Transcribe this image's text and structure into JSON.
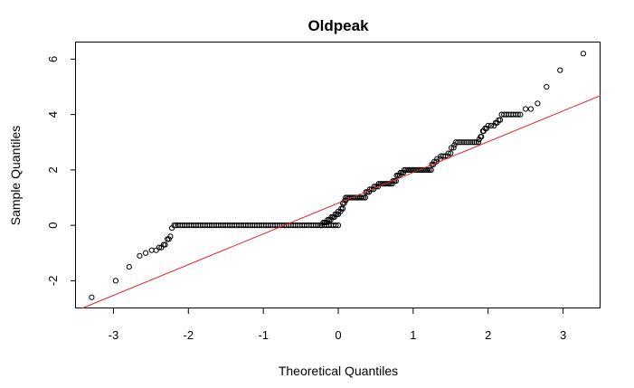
{
  "chart_data": {
    "type": "scatter",
    "title": "Oldpeak",
    "xlabel": "Theoretical Quantiles",
    "ylabel": "Sample Quantiles",
    "xlim": [
      -3.5,
      3.5
    ],
    "ylim": [
      -3.0,
      6.6
    ],
    "xticks": [
      -3,
      -2,
      -1,
      0,
      1,
      2,
      3
    ],
    "yticks": [
      -2,
      0,
      2,
      4,
      6
    ],
    "grid": false,
    "legend": "none",
    "colors": {
      "points": "#000000",
      "ref_line": "#e8242c",
      "frame": "#000000"
    },
    "series": [
      {
        "segments": [
          {
            "x_from": -3.29,
            "x_to": -3.29,
            "value": -2.6,
            "count": 1
          },
          {
            "x_from": -2.97,
            "x_to": -2.97,
            "value": -2.0,
            "count": 1
          },
          {
            "x_from": -2.79,
            "x_to": -2.79,
            "value": -1.5,
            "count": 1
          },
          {
            "x_from": -2.65,
            "x_to": -2.65,
            "value": -1.1,
            "count": 1
          },
          {
            "x_from": -2.57,
            "x_to": -2.57,
            "value": -1.0,
            "count": 1
          },
          {
            "x_from": -2.49,
            "x_to": -2.43,
            "value": -0.9,
            "count": 2
          },
          {
            "x_from": -2.39,
            "x_to": -2.36,
            "value": -0.8,
            "count": 2
          },
          {
            "x_from": -2.33,
            "x_to": -2.31,
            "value": -0.7,
            "count": 2
          },
          {
            "x_from": -2.28,
            "x_to": -2.26,
            "value": -0.5,
            "count": 2
          },
          {
            "x_from": -2.24,
            "x_to": -2.24,
            "value": -0.4,
            "count": 1
          },
          {
            "x_from": -2.22,
            "x_to": -2.22,
            "value": -0.1,
            "count": 1
          },
          {
            "x_from": -2.19,
            "x_to": -2.19,
            "value": 0.0,
            "count": 1
          },
          {
            "x_from": -2.17,
            "x_to": -0.24,
            "value": 0.0,
            "count": 65
          },
          {
            "x_from": -0.22,
            "x_to": 0.0,
            "value": 0.0,
            "count": 8
          },
          {
            "x_from": -0.2,
            "x_to": -0.16,
            "value": 0.1,
            "count": 3
          },
          {
            "x_from": -0.14,
            "x_to": -0.1,
            "value": 0.2,
            "count": 3
          },
          {
            "x_from": -0.09,
            "x_to": -0.05,
            "value": 0.3,
            "count": 3
          },
          {
            "x_from": -0.04,
            "x_to": 0.0,
            "value": 0.4,
            "count": 3
          },
          {
            "x_from": 0.0,
            "x_to": 0.03,
            "value": 0.5,
            "count": 2
          },
          {
            "x_from": 0.04,
            "x_to": 0.06,
            "value": 0.6,
            "count": 2
          },
          {
            "x_from": 0.06,
            "x_to": 0.08,
            "value": 0.8,
            "count": 2
          },
          {
            "x_from": 0.09,
            "x_to": 0.1,
            "value": 0.9,
            "count": 2
          },
          {
            "x_from": 0.1,
            "x_to": 0.36,
            "value": 1.0,
            "count": 13
          },
          {
            "x_from": 0.37,
            "x_to": 0.41,
            "value": 1.2,
            "count": 3
          },
          {
            "x_from": 0.42,
            "x_to": 0.47,
            "value": 1.3,
            "count": 3
          },
          {
            "x_from": 0.48,
            "x_to": 0.53,
            "value": 1.4,
            "count": 3
          },
          {
            "x_from": 0.54,
            "x_to": 0.72,
            "value": 1.5,
            "count": 9
          },
          {
            "x_from": 0.73,
            "x_to": 0.77,
            "value": 1.6,
            "count": 3
          },
          {
            "x_from": 0.78,
            "x_to": 0.82,
            "value": 1.8,
            "count": 3
          },
          {
            "x_from": 0.83,
            "x_to": 0.87,
            "value": 1.9,
            "count": 3
          },
          {
            "x_from": 0.88,
            "x_to": 1.24,
            "value": 2.0,
            "count": 17
          },
          {
            "x_from": 1.25,
            "x_to": 1.27,
            "value": 2.2,
            "count": 2
          },
          {
            "x_from": 1.28,
            "x_to": 1.31,
            "value": 2.3,
            "count": 2
          },
          {
            "x_from": 1.32,
            "x_to": 1.36,
            "value": 2.4,
            "count": 2
          },
          {
            "x_from": 1.37,
            "x_to": 1.46,
            "value": 2.5,
            "count": 4
          },
          {
            "x_from": 1.47,
            "x_to": 1.5,
            "value": 2.6,
            "count": 2
          },
          {
            "x_from": 1.51,
            "x_to": 1.54,
            "value": 2.8,
            "count": 2
          },
          {
            "x_from": 1.55,
            "x_to": 1.56,
            "value": 2.9,
            "count": 1
          },
          {
            "x_from": 1.57,
            "x_to": 1.87,
            "value": 3.0,
            "count": 12
          },
          {
            "x_from": 1.88,
            "x_to": 1.88,
            "value": 3.1,
            "count": 1
          },
          {
            "x_from": 1.9,
            "x_to": 1.91,
            "value": 3.2,
            "count": 2
          },
          {
            "x_from": 1.93,
            "x_to": 1.94,
            "value": 3.4,
            "count": 2
          },
          {
            "x_from": 1.96,
            "x_to": 1.98,
            "value": 3.5,
            "count": 2
          },
          {
            "x_from": 2.0,
            "x_to": 2.08,
            "value": 3.6,
            "count": 3
          },
          {
            "x_from": 2.1,
            "x_to": 2.12,
            "value": 3.7,
            "count": 2
          },
          {
            "x_from": 2.14,
            "x_to": 2.16,
            "value": 3.8,
            "count": 2
          },
          {
            "x_from": 2.18,
            "x_to": 2.43,
            "value": 4.0,
            "count": 9
          },
          {
            "x_from": 2.5,
            "x_to": 2.57,
            "value": 4.2,
            "count": 2
          },
          {
            "x_from": 2.66,
            "x_to": 2.66,
            "value": 4.4,
            "count": 1
          },
          {
            "x_from": 2.78,
            "x_to": 2.78,
            "value": 5.0,
            "count": 1
          },
          {
            "x_from": 2.96,
            "x_to": 2.96,
            "value": 5.6,
            "count": 1
          },
          {
            "x_from": 3.27,
            "x_to": 3.27,
            "value": 6.2,
            "count": 1
          }
        ]
      }
    ],
    "reference_line": {
      "intercept": 0.8,
      "slope": 1.11
    }
  }
}
